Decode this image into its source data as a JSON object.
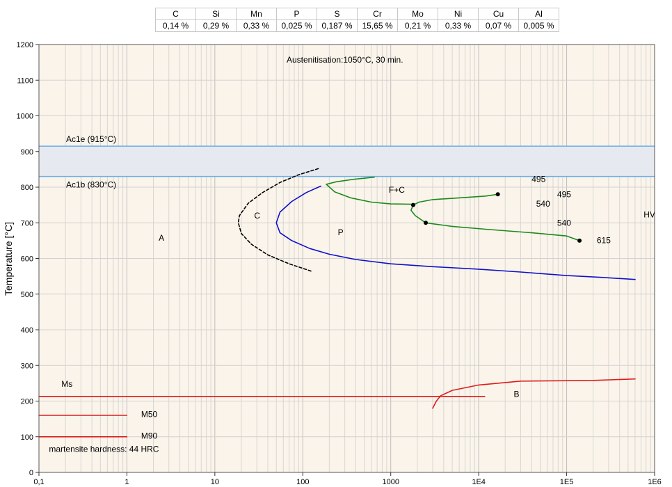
{
  "composition": {
    "elements": [
      "C",
      "Si",
      "Mn",
      "P",
      "S",
      "Cr",
      "Mo",
      "Ni",
      "Cu",
      "Al"
    ],
    "values": [
      "0,14 %",
      "0,29 %",
      "0,33 %",
      "0,025 %",
      "0,187 %",
      "15,65 %",
      "0,21 %",
      "0,33 %",
      "0,07 %",
      "0,005 %"
    ]
  },
  "chart_data": {
    "type": "line",
    "title": "Austenitisation:1050°C, 30 min.",
    "ylabel": "Temperature [°C]",
    "xlabel": "",
    "x_scale": "log",
    "xlim": [
      0.1,
      1000000
    ],
    "ylim": [
      0,
      1200
    ],
    "x_ticks": [
      0.1,
      1,
      10,
      100,
      1000,
      10000,
      100000,
      1000000
    ],
    "x_tick_labels": [
      "0,1",
      "1",
      "10",
      "100",
      "1000",
      "1E4",
      "1E5",
      "1E6"
    ],
    "y_ticks": [
      0,
      100,
      200,
      300,
      400,
      500,
      600,
      700,
      800,
      900,
      1000,
      1100,
      1200
    ],
    "grid": true,
    "colors": {
      "background": "#fbf4ea",
      "band": "#e6e9ef",
      "ac_line": "#6aaee8",
      "carbide": "#000000",
      "pearlite": "#1010cc",
      "ferrite_carbide": "#1a8a1a",
      "bainite_martensite": "#dd1c1c"
    },
    "transformation_band": {
      "top_temp": 915,
      "bottom_temp": 830,
      "top_label": "Ac1e (915°C)",
      "bottom_label": "Ac1b (830°C)"
    },
    "series": [
      {
        "style": "dashed",
        "color": "#000000",
        "points": [
          [
            150,
            852
          ],
          [
            90,
            835
          ],
          [
            55,
            813
          ],
          [
            35,
            785
          ],
          [
            24,
            755
          ],
          [
            19,
            720
          ],
          [
            18.5,
            700
          ],
          [
            20,
            670
          ],
          [
            26,
            640
          ],
          [
            40,
            610
          ],
          [
            70,
            585
          ],
          [
            130,
            563
          ]
        ]
      },
      {
        "color": "#1010cc",
        "points": [
          [
            160,
            803
          ],
          [
            110,
            785
          ],
          [
            75,
            760
          ],
          [
            55,
            730
          ],
          [
            50,
            700
          ],
          [
            55,
            672
          ],
          [
            75,
            650
          ],
          [
            120,
            628
          ],
          [
            200,
            612
          ],
          [
            400,
            597
          ],
          [
            1000,
            585
          ],
          [
            3000,
            577
          ],
          [
            10000,
            570
          ],
          [
            30000,
            562
          ],
          [
            100000,
            552
          ],
          [
            250000,
            547
          ],
          [
            600000,
            541
          ]
        ]
      },
      {
        "color": "#1a8a1a",
        "points": [
          [
            185,
            808
          ],
          [
            240,
            815
          ],
          [
            380,
            822
          ],
          [
            650,
            828
          ]
        ]
      },
      {
        "color": "#1a8a1a",
        "points": [
          [
            185,
            808
          ],
          [
            230,
            787
          ],
          [
            350,
            770
          ],
          [
            600,
            758
          ],
          [
            1000,
            753
          ],
          [
            1800,
            752
          ]
        ]
      },
      {
        "color": "#1a8a1a",
        "points": [
          [
            1800,
            750
          ],
          [
            2100,
            758
          ],
          [
            3000,
            765
          ],
          [
            6000,
            770
          ],
          [
            12000,
            775
          ],
          [
            16500,
            780
          ]
        ]
      },
      {
        "color": "#1a8a1a",
        "points": [
          [
            1800,
            750
          ],
          [
            1700,
            735
          ],
          [
            1900,
            720
          ],
          [
            2500,
            700
          ],
          [
            5000,
            690
          ],
          [
            12000,
            682
          ],
          [
            40000,
            672
          ],
          [
            100000,
            663
          ],
          [
            140000,
            650
          ]
        ]
      },
      {
        "color": "#dd1c1c",
        "points": [
          [
            0.1,
            213
          ],
          [
            11700,
            213
          ]
        ]
      },
      {
        "color": "#dd1c1c",
        "points": [
          [
            0.1,
            160
          ],
          [
            1,
            160
          ]
        ]
      },
      {
        "color": "#dd1c1c",
        "points": [
          [
            0.1,
            100
          ],
          [
            1,
            100
          ]
        ]
      },
      {
        "color": "#dd1c1c",
        "points": [
          [
            3000,
            180
          ],
          [
            3300,
            200
          ],
          [
            3700,
            215
          ],
          [
            5000,
            230
          ],
          [
            10000,
            245
          ],
          [
            30000,
            256
          ],
          [
            200000,
            258
          ],
          [
            600000,
            262
          ]
        ]
      }
    ],
    "markers": [
      [
        1800,
        750
      ],
      [
        16500,
        780
      ],
      [
        2500,
        700
      ],
      [
        140000,
        650
      ]
    ],
    "annotations": [
      {
        "text": "A",
        "x": 2.3,
        "y": 650
      },
      {
        "text": "C",
        "x": 28,
        "y": 712
      },
      {
        "text": "P",
        "x": 250,
        "y": 665
      },
      {
        "text": "F+C",
        "x": 950,
        "y": 784
      },
      {
        "text": "495",
        "x": 40000,
        "y": 815
      },
      {
        "text": "495",
        "x": 78000,
        "y": 772
      },
      {
        "text": "540",
        "x": 45000,
        "y": 745
      },
      {
        "text": "540",
        "x": 78000,
        "y": 692
      },
      {
        "text": "615",
        "x": 220000,
        "y": 643
      },
      {
        "text": "HV",
        "x": 750000,
        "y": 715
      },
      {
        "text": "Ms",
        "x": 0.18,
        "y": 240
      },
      {
        "text": "B",
        "x": 25000,
        "y": 212
      },
      {
        "text": "M50",
        "x": 1.45,
        "y": 155
      },
      {
        "text": "M90",
        "x": 1.45,
        "y": 95
      },
      {
        "text": "martensite hardness: 44 HRC",
        "x": 0.13,
        "y": 58
      }
    ]
  }
}
